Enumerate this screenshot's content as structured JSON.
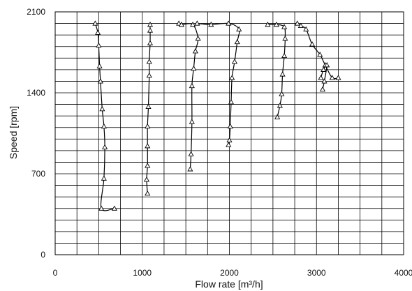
{
  "chart_data": {
    "type": "scatter",
    "xlabel": "Flow rate [m³/h]",
    "ylabel": "Speed [rpm]",
    "xlim": [
      0,
      4000
    ],
    "ylim": [
      0,
      2100
    ],
    "x_ticks": [
      0,
      1000,
      2000,
      3000,
      4000
    ],
    "y_ticks": [
      0,
      700,
      1400,
      2100
    ],
    "x_ticklabels": [
      "0",
      "1000",
      "2000",
      "3000",
      "4000"
    ],
    "y_ticklabels": [
      "0",
      "700",
      "1400",
      "2100"
    ],
    "grid": true,
    "x_minor_step": 250,
    "y_minor_step": 100,
    "line_color": "#000000",
    "grid_color": "#000000",
    "marker": "triangle-open",
    "series": [
      {
        "x": [
          460,
          490,
          500,
          510,
          520,
          540,
          560,
          570,
          560,
          530,
          680
        ],
        "y": [
          2000,
          1920,
          1810,
          1630,
          1500,
          1260,
          1110,
          930,
          660,
          400,
          400
        ]
      },
      {
        "x": [
          1090,
          1090,
          1090,
          1080,
          1080,
          1070,
          1060,
          1060,
          1060,
          1050,
          1060
        ],
        "y": [
          1990,
          1940,
          1830,
          1670,
          1550,
          1280,
          1110,
          940,
          770,
          650,
          530
        ]
      },
      {
        "x": [
          1420,
          1450,
          1580,
          1640,
          1610,
          1590,
          1570,
          1570,
          1560,
          1550
        ],
        "y": [
          2000,
          1990,
          1990,
          1870,
          1760,
          1610,
          1460,
          1150,
          870,
          740
        ]
      },
      {
        "x": [
          1630,
          1790,
          1990,
          2110,
          2090,
          2060,
          2030,
          2020,
          2010,
          2000,
          1990
        ],
        "y": [
          2000,
          1990,
          2000,
          1950,
          1840,
          1670,
          1530,
          1320,
          1110,
          990,
          950
        ]
      },
      {
        "x": [
          2440,
          2540,
          2630,
          2640,
          2630,
          2610,
          2600,
          2580,
          2550
        ],
        "y": [
          1990,
          1990,
          1970,
          1870,
          1720,
          1560,
          1390,
          1290,
          1190
        ]
      },
      {
        "x": [
          2780,
          2820,
          2880,
          2950,
          3040,
          3100,
          3180,
          3250
        ],
        "y": [
          2000,
          1980,
          1950,
          1820,
          1730,
          1640,
          1530,
          1530
        ]
      },
      {
        "x": [
          3050,
          3080,
          3120,
          3090,
          3070
        ],
        "y": [
          1530,
          1600,
          1640,
          1500,
          1430
        ]
      }
    ]
  }
}
